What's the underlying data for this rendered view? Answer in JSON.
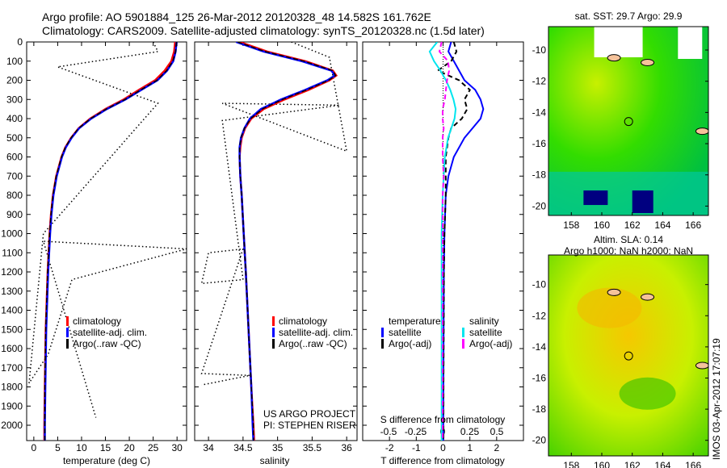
{
  "header": {
    "line1": "Argo profile: AO 5901884_125 26-Mar-2012 20120328_48 14.582S 161.762E",
    "line2": "Climatology: CARS2009. Satellite-adjusted climatology: synTS_20120328.nc (1.5d later)"
  },
  "footer_stamp": "IMOS 03-Apr-2012 17:07:19",
  "colors": {
    "climatology": "#ff0000",
    "satellite": "#0000ff",
    "argo": "#000000",
    "sal_satellite": "#00e5ee",
    "sal_argo": "#ff00ff"
  },
  "chart_data": [
    {
      "type": "line",
      "id": "temperature",
      "xlabel": "temperature (deg C)",
      "ylabel": "",
      "xlim": [
        -1.5,
        32
      ],
      "ylim": [
        0,
        2080
      ],
      "xticks": [
        0,
        5,
        10,
        15,
        20,
        25,
        30
      ],
      "yticks": [
        0,
        100,
        200,
        300,
        400,
        500,
        600,
        700,
        800,
        900,
        1000,
        1100,
        1200,
        1300,
        1400,
        1500,
        1600,
        1700,
        1800,
        1900,
        2000
      ],
      "legend": {
        "placement": "bottom-center",
        "entries": [
          "climatology",
          "satellite-adj. clim.",
          "Argo(..raw -QC)"
        ]
      },
      "depth": [
        0,
        50,
        100,
        150,
        200,
        250,
        300,
        350,
        400,
        450,
        500,
        550,
        600,
        700,
        800,
        900,
        1000,
        1200,
        1500,
        1800,
        2000,
        2080
      ],
      "series": [
        {
          "name": "climatology",
          "values": [
            29.6,
            29.4,
            28.8,
            27.4,
            25.4,
            22.0,
            18.8,
            15.0,
            11.8,
            9.4,
            7.8,
            6.6,
            5.8,
            4.7,
            4.0,
            3.6,
            3.3,
            2.9,
            2.5,
            2.3,
            2.2,
            2.2
          ]
        },
        {
          "name": "satellite-adj. clim.",
          "values": [
            29.9,
            29.7,
            29.2,
            27.9,
            25.9,
            22.5,
            19.2,
            15.3,
            12.0,
            9.5,
            7.9,
            6.7,
            5.9,
            4.8,
            4.1,
            3.7,
            3.4,
            3.0,
            2.6,
            2.4,
            2.3,
            2.3
          ]
        },
        {
          "name": "Argo(..raw -QC)",
          "values": [
            29.9,
            29.7,
            29.1,
            27.8,
            25.8,
            22.4,
            19.1,
            15.2,
            11.9,
            9.4,
            7.8,
            6.6,
            5.8,
            4.7,
            4.0,
            3.6,
            3.3,
            2.9,
            2.5,
            2.3,
            2.3,
            2.3
          ]
        }
      ]
    },
    {
      "type": "line",
      "id": "salinity",
      "xlabel": "salinity",
      "xlim": [
        33.8,
        36.15
      ],
      "ylim": [
        0,
        2080
      ],
      "xticks": [
        34,
        34.5,
        35,
        35.5,
        36
      ],
      "legend": {
        "placement": "bottom-center",
        "entries": [
          "climatology",
          "satellite-adj. clim.",
          "Argo(..raw -QC)"
        ]
      },
      "annotation": [
        "US ARGO PROJECT",
        "PI: STEPHEN RISER"
      ],
      "depth": [
        0,
        50,
        100,
        150,
        175,
        200,
        250,
        300,
        350,
        400,
        450,
        500,
        550,
        600,
        700,
        800,
        1000,
        1200,
        1500,
        1800,
        2000,
        2080
      ],
      "series": [
        {
          "name": "climatology",
          "values": [
            34.45,
            34.85,
            35.4,
            35.8,
            35.85,
            35.75,
            35.45,
            35.1,
            34.8,
            34.62,
            34.53,
            34.48,
            34.46,
            34.45,
            34.46,
            34.48,
            34.51,
            34.54,
            34.58,
            34.62,
            34.65,
            34.66
          ]
        },
        {
          "name": "satellite-adj. clim.",
          "values": [
            34.4,
            34.8,
            35.35,
            35.78,
            35.83,
            35.72,
            35.4,
            35.05,
            34.76,
            34.6,
            34.52,
            34.47,
            34.45,
            34.45,
            34.46,
            34.48,
            34.51,
            34.54,
            34.58,
            34.62,
            34.64,
            34.65
          ]
        },
        {
          "name": "Argo(..raw -QC)",
          "values": [
            34.42,
            34.82,
            35.38,
            35.8,
            35.84,
            35.74,
            35.42,
            35.07,
            34.78,
            34.61,
            34.52,
            34.47,
            34.45,
            34.45,
            34.46,
            34.48,
            34.51,
            34.54,
            34.58,
            34.62,
            34.65,
            34.65
          ]
        }
      ]
    },
    {
      "type": "line",
      "id": "difference",
      "xlabel": "T difference from climatology",
      "x2label": "S difference from climatology",
      "xlim": [
        -3,
        3
      ],
      "x2lim": [
        -0.5,
        0.5
      ],
      "ylim": [
        0,
        2080
      ],
      "xticks": [
        -2,
        -1,
        0,
        1,
        2
      ],
      "x2ticks": [
        "-0.5",
        "-0.25",
        "0",
        "0.25",
        "0.5"
      ],
      "legend": {
        "placement": "bottom-center",
        "headers": [
          "temperature",
          "salinity"
        ],
        "entries": [
          "satellite",
          "Argo(-adj)",
          "satellite",
          "Argo(-adj)"
        ]
      },
      "depth": [
        0,
        50,
        100,
        150,
        200,
        250,
        300,
        350,
        400,
        450,
        500,
        600,
        700,
        800,
        1000,
        1200,
        1500,
        2000,
        2080
      ],
      "series": [
        {
          "name": "T satellite",
          "values": [
            0.3,
            0.2,
            0.4,
            0.6,
            0.8,
            1.2,
            1.4,
            1.5,
            1.4,
            1.1,
            0.8,
            0.4,
            0.2,
            0.1,
            0.05,
            0.03,
            0.02,
            0.01,
            0.01
          ]
        },
        {
          "name": "T Argo(-adj)",
          "values": [
            0.4,
            0.5,
            0.3,
            -0.2,
            0.6,
            1.0,
            0.8,
            0.9,
            0.7,
            0.3,
            0.2,
            0.1,
            0.1,
            0.1,
            0.05,
            0.03,
            0.02,
            0.01,
            0.01
          ]
        },
        {
          "name": "S satellite",
          "values": [
            -0.05,
            -0.12,
            -0.08,
            -0.02,
            0.03,
            0.07,
            0.1,
            0.12,
            0.11,
            0.08,
            0.05,
            0.02,
            0.01,
            0.0,
            -0.01,
            -0.01,
            -0.01,
            -0.01,
            -0.01
          ]
        },
        {
          "name": "S Argo(-adj)",
          "values": [
            -0.01,
            -0.03,
            0.05,
            0.06,
            0.04,
            0.03,
            0.02,
            0.0,
            0.0,
            0.01,
            0.0,
            0.0,
            0.01,
            0.0,
            0.0,
            0.0,
            0.0,
            0.0,
            0.0
          ]
        }
      ]
    },
    {
      "type": "heatmap",
      "id": "sst_map",
      "title": "sat. SST: 29.7 Argo: 29.9",
      "xlim": [
        156.5,
        167
      ],
      "ylim": [
        -20.6,
        -8.5
      ],
      "xticks": [
        158,
        160,
        162,
        164,
        166
      ],
      "yticks": [
        -10,
        -12,
        -14,
        -16,
        -18,
        -20
      ],
      "marker": {
        "lon": 161.76,
        "lat": -14.58
      }
    },
    {
      "type": "heatmap",
      "id": "sla_map",
      "title": [
        "Altim. SLA: 0.14",
        "Argo h1000: NaN h2000: NaN"
      ],
      "xlim": [
        156.5,
        167
      ],
      "ylim": [
        -21,
        -8.1
      ],
      "xticks": [
        158,
        160,
        162,
        164,
        166
      ],
      "yticks": [
        -10,
        -12,
        -14,
        -16,
        -18,
        -20
      ],
      "marker": {
        "lon": 161.76,
        "lat": -14.58
      }
    }
  ]
}
